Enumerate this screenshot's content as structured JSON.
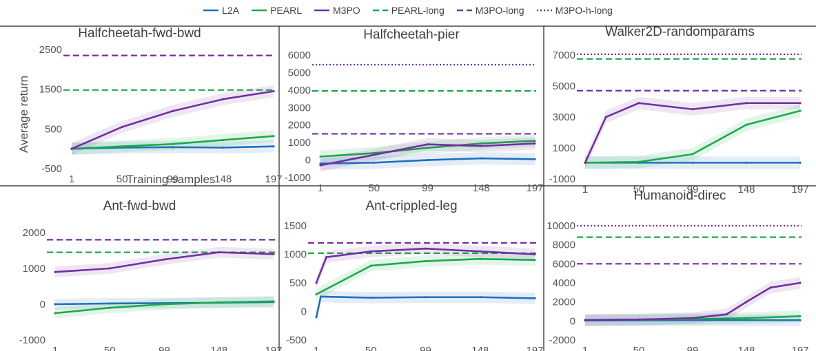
{
  "legend": [
    {
      "label": "L2A",
      "color": "#1f6fbf",
      "dash": "solid"
    },
    {
      "label": "PEARL",
      "color": "#1aaa4a",
      "dash": "solid"
    },
    {
      "label": "M3PO",
      "color": "#7030a0",
      "dash": "solid"
    },
    {
      "label": "PEARL-long",
      "color": "#1aaa4a",
      "dash": "dashed"
    },
    {
      "label": "M3PO-long",
      "color": "#7030a0",
      "dash": "dashed"
    },
    {
      "label": "M3PO-h-long",
      "color": "#7030a0",
      "dash": "dotted"
    }
  ],
  "colors": {
    "L2A": "#1f6fbf",
    "PEARL": "#1aaa4a",
    "M3PO": "#7030a0"
  },
  "shared_labels": {
    "ylabel": "Average return",
    "xlabel": "Training samples"
  },
  "chart_data": [
    {
      "type": "line",
      "title": "Halfcheetah-fwd-bwd",
      "x_ticks": [
        "1",
        "50",
        "99",
        "148",
        "197"
      ],
      "y_ticks": [
        -500,
        500,
        1500,
        2500
      ],
      "ylim": [
        -500,
        2500
      ],
      "series": [
        {
          "name": "L2A",
          "points": [
            [
              1,
              0
            ],
            [
              50,
              30
            ],
            [
              99,
              40
            ],
            [
              148,
              30
            ],
            [
              197,
              60
            ]
          ]
        },
        {
          "name": "PEARL",
          "points": [
            [
              1,
              0
            ],
            [
              50,
              60
            ],
            [
              99,
              120
            ],
            [
              148,
              220
            ],
            [
              197,
              320
            ]
          ]
        },
        {
          "name": "M3PO",
          "points": [
            [
              1,
              0
            ],
            [
              50,
              550
            ],
            [
              99,
              950
            ],
            [
              148,
              1250
            ],
            [
              197,
              1450
            ]
          ]
        }
      ],
      "hlines": [
        {
          "name": "M3PO-long",
          "y": 2350
        },
        {
          "name": "PEARL-long",
          "y": 1480
        }
      ]
    },
    {
      "type": "line",
      "title": "Halfcheetah-pier",
      "x_ticks": [
        "1",
        "50",
        "99",
        "148",
        "197"
      ],
      "y_ticks": [
        -1000,
        0,
        1000,
        2000,
        3000,
        4000,
        5000,
        6000
      ],
      "ylim": [
        -1000,
        6000
      ],
      "series": [
        {
          "name": "L2A",
          "points": [
            [
              1,
              -200
            ],
            [
              50,
              -150
            ],
            [
              99,
              0
            ],
            [
              148,
              100
            ],
            [
              197,
              50
            ]
          ]
        },
        {
          "name": "PEARL",
          "points": [
            [
              1,
              200
            ],
            [
              50,
              400
            ],
            [
              99,
              700
            ],
            [
              148,
              950
            ],
            [
              197,
              1100
            ]
          ]
        },
        {
          "name": "M3PO",
          "points": [
            [
              1,
              -300
            ],
            [
              50,
              300
            ],
            [
              99,
              900
            ],
            [
              148,
              800
            ],
            [
              197,
              950
            ]
          ]
        }
      ],
      "hlines": [
        {
          "name": "M3PO-h-long",
          "y": 5450
        },
        {
          "name": "PEARL-long",
          "y": 3950
        },
        {
          "name": "M3PO-long",
          "y": 1500
        }
      ]
    },
    {
      "type": "line",
      "title": "Walker2D-randomparams",
      "x_ticks": [
        "1",
        "50",
        "99",
        "148",
        "197"
      ],
      "y_ticks": [
        -1000,
        1000,
        3000,
        5000,
        7000
      ],
      "ylim": [
        -1000,
        7000
      ],
      "series": [
        {
          "name": "L2A",
          "points": [
            [
              1,
              50
            ],
            [
              50,
              50
            ],
            [
              99,
              50
            ],
            [
              148,
              50
            ],
            [
              197,
              50
            ]
          ]
        },
        {
          "name": "PEARL",
          "points": [
            [
              1,
              50
            ],
            [
              50,
              100
            ],
            [
              99,
              600
            ],
            [
              148,
              2500
            ],
            [
              197,
              3400
            ]
          ]
        },
        {
          "name": "M3PO",
          "points": [
            [
              1,
              50
            ],
            [
              20,
              3000
            ],
            [
              50,
              3900
            ],
            [
              99,
              3500
            ],
            [
              148,
              3900
            ],
            [
              197,
              3900
            ]
          ]
        }
      ],
      "hlines": [
        {
          "name": "M3PO-h-long",
          "y": 7050
        },
        {
          "name": "PEARL-long",
          "y": 6750
        },
        {
          "name": "M3PO-long",
          "y": 4700
        }
      ]
    },
    {
      "type": "line",
      "title": "Ant-fwd-bwd",
      "x_ticks": [
        "1",
        "50",
        "99",
        "148",
        "197"
      ],
      "y_ticks": [
        -1000,
        0,
        1000,
        2000
      ],
      "ylim": [
        -1000,
        2000
      ],
      "series": [
        {
          "name": "L2A",
          "points": [
            [
              1,
              0
            ],
            [
              50,
              20
            ],
            [
              99,
              30
            ],
            [
              148,
              40
            ],
            [
              197,
              60
            ]
          ]
        },
        {
          "name": "PEARL",
          "points": [
            [
              1,
              -250
            ],
            [
              50,
              -100
            ],
            [
              99,
              0
            ],
            [
              148,
              50
            ],
            [
              197,
              80
            ]
          ]
        },
        {
          "name": "M3PO",
          "points": [
            [
              1,
              900
            ],
            [
              50,
              1000
            ],
            [
              99,
              1250
            ],
            [
              148,
              1450
            ],
            [
              197,
              1400
            ]
          ]
        }
      ],
      "hlines": [
        {
          "name": "M3PO-long",
          "y": 1800
        },
        {
          "name": "PEARL-long",
          "y": 1450
        }
      ]
    },
    {
      "type": "line",
      "title": "Ant-crippled-leg",
      "x_ticks": [
        "1",
        "50",
        "99",
        "148",
        "197"
      ],
      "y_ticks": [
        -500,
        0,
        500,
        1000,
        1500
      ],
      "ylim": [
        -500,
        1500
      ],
      "series": [
        {
          "name": "L2A",
          "points": [
            [
              1,
              -100
            ],
            [
              5,
              260
            ],
            [
              50,
              240
            ],
            [
              99,
              250
            ],
            [
              148,
              250
            ],
            [
              197,
              230
            ]
          ]
        },
        {
          "name": "PEARL",
          "points": [
            [
              1,
              300
            ],
            [
              50,
              800
            ],
            [
              99,
              880
            ],
            [
              148,
              920
            ],
            [
              197,
              900
            ]
          ]
        },
        {
          "name": "M3PO",
          "points": [
            [
              1,
              500
            ],
            [
              10,
              950
            ],
            [
              50,
              1050
            ],
            [
              99,
              1100
            ],
            [
              148,
              1050
            ],
            [
              197,
              1000
            ]
          ]
        }
      ],
      "hlines": [
        {
          "name": "M3PO-long",
          "y": 1200
        },
        {
          "name": "PEARL-long",
          "y": 1020
        }
      ]
    },
    {
      "type": "line",
      "title": "Humanoid-direc",
      "x_ticks": [
        "1",
        "50",
        "99",
        "148",
        "197"
      ],
      "y_ticks": [
        -2000,
        0,
        2000,
        4000,
        6000,
        8000,
        10000
      ],
      "ylim": [
        -2000,
        10000
      ],
      "series": [
        {
          "name": "L2A",
          "points": [
            [
              1,
              50
            ],
            [
              50,
              60
            ],
            [
              99,
              80
            ],
            [
              148,
              80
            ],
            [
              197,
              80
            ]
          ]
        },
        {
          "name": "PEARL",
          "points": [
            [
              1,
              100
            ],
            [
              50,
              150
            ],
            [
              99,
              200
            ],
            [
              148,
              300
            ],
            [
              197,
              500
            ]
          ]
        },
        {
          "name": "M3PO",
          "points": [
            [
              1,
              100
            ],
            [
              50,
              150
            ],
            [
              99,
              300
            ],
            [
              130,
              700
            ],
            [
              148,
              2000
            ],
            [
              170,
              3500
            ],
            [
              197,
              4000
            ]
          ]
        }
      ],
      "hlines": [
        {
          "name": "M3PO-h-long",
          "y": 10000
        },
        {
          "name": "PEARL-long",
          "y": 8800
        },
        {
          "name": "M3PO-long",
          "y": 6000
        }
      ]
    }
  ]
}
